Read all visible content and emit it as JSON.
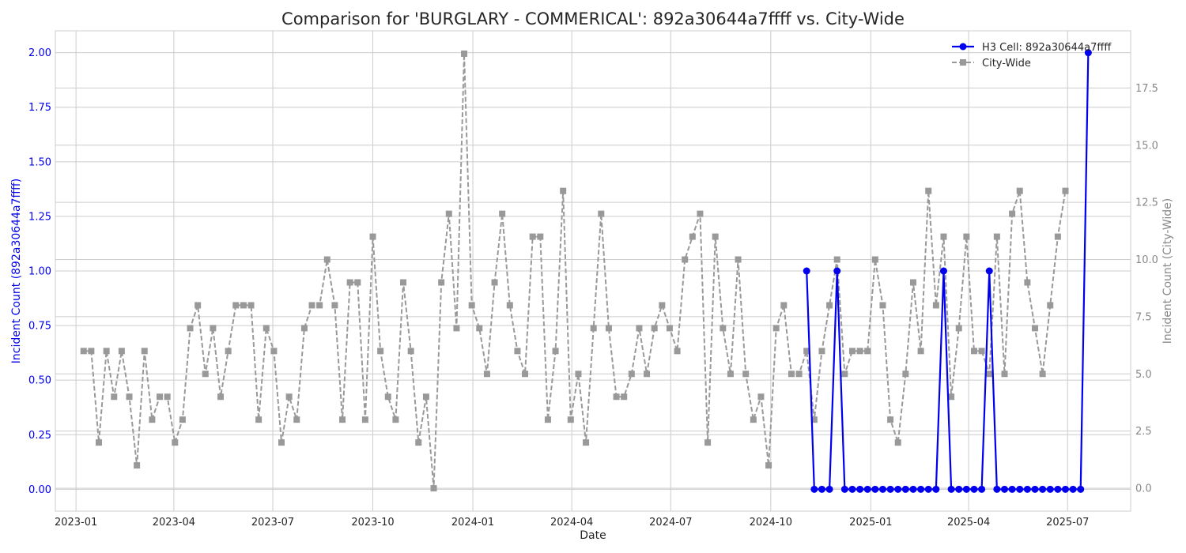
{
  "chart_data": {
    "type": "line",
    "title": "Comparison for 'BURGLARY - COMMERICAL': 892a30644a7ffff vs. City-Wide",
    "xlabel": "Date",
    "ylabel_left": "Incident Count (892a30644a7ffff)",
    "ylabel_right": "Incident Count (City-Wide)",
    "x_ticks": [
      "2023-01",
      "2023-04",
      "2023-07",
      "2023-10",
      "2024-01",
      "2024-04",
      "2024-07",
      "2024-10",
      "2025-01",
      "2025-04",
      "2025-07"
    ],
    "y_left_ticks": [
      "0.00",
      "0.25",
      "0.50",
      "0.75",
      "1.00",
      "1.25",
      "1.50",
      "1.75",
      "2.00"
    ],
    "y_right_ticks": [
      "0.0",
      "2.5",
      "5.0",
      "7.5",
      "10.0",
      "12.5",
      "15.0",
      "17.5"
    ],
    "ylim_left": [
      -0.1,
      2.1
    ],
    "ylim_right": [
      -1,
      20
    ],
    "grid": true,
    "legend_position": "top-right",
    "colors": {
      "cell": "#0000ee",
      "city": "#999999",
      "left_axis_text": "#0000ee",
      "right_axis_text": "#888888",
      "grid": "#cccccc"
    },
    "series": [
      {
        "name": "H3 Cell: 892a30644a7ffff",
        "axis": "left",
        "style": "solid-circle",
        "start_date": "2024-11-03",
        "step_days": 7,
        "values": [
          1,
          0,
          0,
          0,
          1,
          0,
          0,
          0,
          0,
          0,
          0,
          0,
          0,
          0,
          0,
          0,
          0,
          0,
          1,
          0,
          0,
          0,
          0,
          0,
          1,
          0,
          0,
          0,
          0,
          0,
          0,
          0,
          0,
          0,
          0,
          0,
          0,
          2
        ]
      },
      {
        "name": "City-Wide",
        "axis": "right",
        "style": "dashed-square",
        "start_date": "2023-01-08",
        "step_days": 7,
        "values": [
          6,
          6,
          2,
          6,
          4,
          6,
          4,
          1,
          6,
          3,
          4,
          4,
          2,
          3,
          7,
          8,
          5,
          7,
          4,
          6,
          8,
          8,
          8,
          3,
          7,
          6,
          2,
          4,
          3,
          7,
          8,
          8,
          10,
          8,
          3,
          9,
          9,
          3,
          11,
          6,
          4,
          3,
          9,
          6,
          2,
          4,
          0,
          9,
          12,
          7,
          19,
          8,
          7,
          5,
          9,
          12,
          8,
          6,
          5,
          11,
          11,
          3,
          6,
          13,
          3,
          5,
          2,
          7,
          12,
          7,
          4,
          4,
          5,
          7,
          5,
          7,
          8,
          7,
          6,
          10,
          11,
          12,
          2,
          11,
          7,
          5,
          10,
          5,
          3,
          4,
          1,
          7,
          8,
          5,
          5,
          6,
          3,
          6,
          8,
          10,
          5,
          6,
          6,
          6,
          10,
          8,
          3,
          2,
          5,
          9,
          6,
          13,
          8,
          11,
          4,
          7,
          11,
          6,
          6,
          5,
          11,
          5,
          12,
          13,
          9,
          7,
          5,
          8,
          11,
          13
        ]
      }
    ]
  }
}
